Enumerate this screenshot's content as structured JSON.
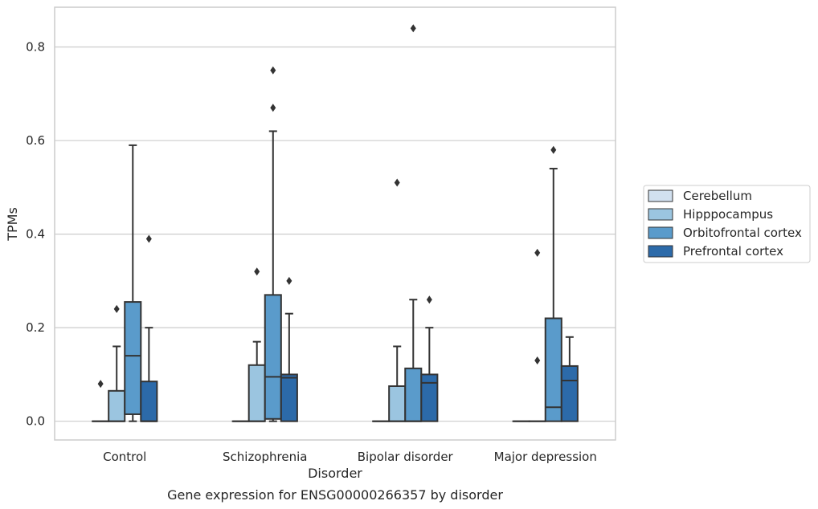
{
  "chart_data": {
    "type": "box",
    "xlabel": "Disorder",
    "ylabel": "TPMs",
    "caption": "Gene expression for ENSG00000266357 by disorder",
    "ylim": [
      -0.04,
      0.885
    ],
    "yticks": [
      0.0,
      0.2,
      0.4,
      0.6,
      0.8
    ],
    "ytick_labels": [
      "0.0",
      "0.2",
      "0.4",
      "0.6",
      "0.8"
    ],
    "grid": "horizontal",
    "legend_position": "right",
    "categories": [
      "Control",
      "Schizophrenia",
      "Bipolar disorder",
      "Major depression"
    ],
    "series": [
      {
        "name": "Cerebellum",
        "color": "#d1e0ef",
        "boxes": [
          {
            "whisker_low": 0,
            "q1": 0,
            "median": 0,
            "q3": 0,
            "whisker_high": 0,
            "outliers": [
              0.08
            ]
          },
          {
            "whisker_low": 0,
            "q1": 0,
            "median": 0,
            "q3": 0,
            "whisker_high": 0,
            "outliers": []
          },
          {
            "whisker_low": 0,
            "q1": 0,
            "median": 0,
            "q3": 0,
            "whisker_high": 0,
            "outliers": []
          },
          {
            "whisker_low": 0,
            "q1": 0,
            "median": 0,
            "q3": 0,
            "whisker_high": 0,
            "outliers": []
          }
        ]
      },
      {
        "name": "Hipppocampus",
        "color": "#9bc5e0",
        "boxes": [
          {
            "whisker_low": 0,
            "q1": 0,
            "median": 0,
            "q3": 0.065,
            "whisker_high": 0.16,
            "outliers": [
              0.24
            ]
          },
          {
            "whisker_low": 0,
            "q1": 0,
            "median": 0,
            "q3": 0.12,
            "whisker_high": 0.17,
            "outliers": [
              0.32
            ]
          },
          {
            "whisker_low": 0,
            "q1": 0,
            "median": 0,
            "q3": 0.075,
            "whisker_high": 0.16,
            "outliers": [
              0.51
            ]
          },
          {
            "whisker_low": 0,
            "q1": 0,
            "median": 0,
            "q3": 0,
            "whisker_high": 0,
            "outliers": [
              0.13,
              0.36
            ]
          }
        ]
      },
      {
        "name": "Orbitofrontal cortex",
        "color": "#5a9bcb",
        "boxes": [
          {
            "whisker_low": 0,
            "q1": 0.015,
            "median": 0.14,
            "q3": 0.255,
            "whisker_high": 0.59,
            "outliers": []
          },
          {
            "whisker_low": 0,
            "q1": 0.005,
            "median": 0.095,
            "q3": 0.27,
            "whisker_high": 0.62,
            "outliers": [
              0.67,
              0.75
            ]
          },
          {
            "whisker_low": 0,
            "q1": 0,
            "median": 0,
            "q3": 0.113,
            "whisker_high": 0.26,
            "outliers": [
              0.84
            ]
          },
          {
            "whisker_low": 0,
            "q1": 0,
            "median": 0.03,
            "q3": 0.22,
            "whisker_high": 0.54,
            "outliers": [
              0.58
            ]
          }
        ]
      },
      {
        "name": "Prefrontal cortex",
        "color": "#2c6aa9",
        "boxes": [
          {
            "whisker_low": 0,
            "q1": 0,
            "median": 0,
            "q3": 0.085,
            "whisker_high": 0.2,
            "outliers": [
              0.39
            ]
          },
          {
            "whisker_low": 0,
            "q1": 0,
            "median": 0.093,
            "q3": 0.1,
            "whisker_high": 0.23,
            "outliers": [
              0.3
            ]
          },
          {
            "whisker_low": 0,
            "q1": 0,
            "median": 0.082,
            "q3": 0.1,
            "whisker_high": 0.2,
            "outliers": [
              0.26
            ]
          },
          {
            "whisker_low": 0,
            "q1": 0,
            "median": 0.087,
            "q3": 0.118,
            "whisker_high": 0.18,
            "outliers": []
          }
        ]
      }
    ]
  }
}
